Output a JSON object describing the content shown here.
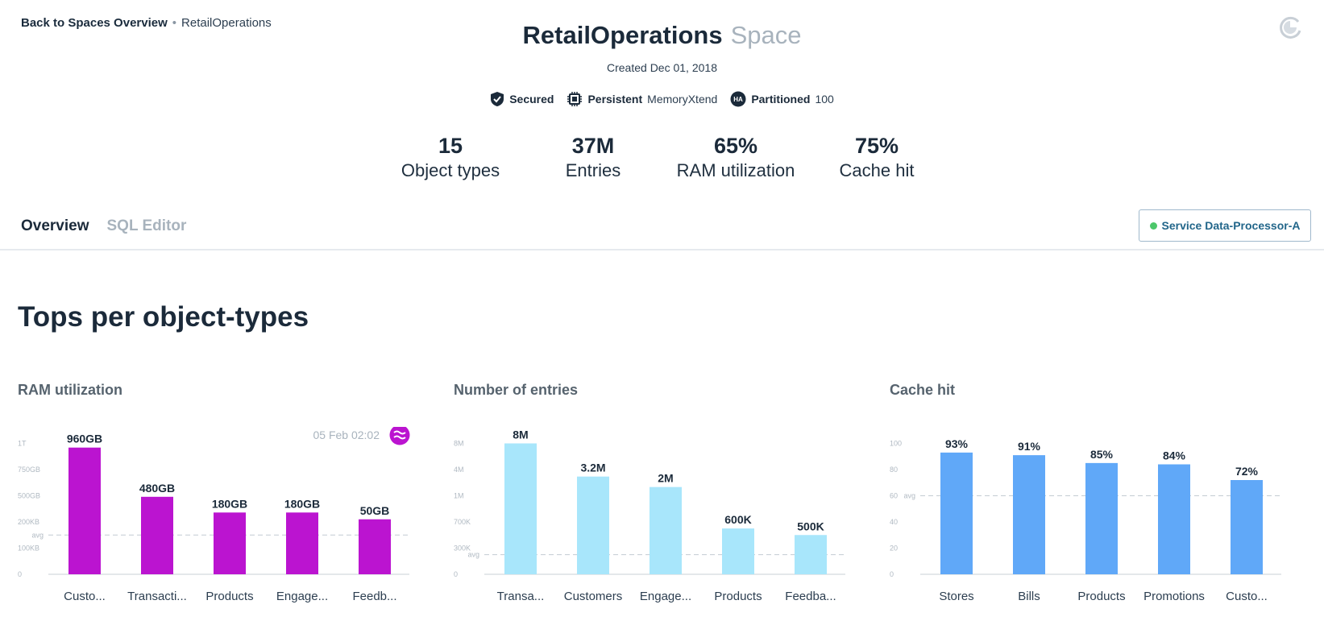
{
  "breadcrumb": {
    "back": "Back to Spaces Overview",
    "separator": "•",
    "current": "RetailOperations"
  },
  "header": {
    "title": "RetailOperations",
    "subtitle": "Space",
    "created": "Created Dec 01, 2018"
  },
  "badges": {
    "secured": "Secured",
    "persistent": "Persistent",
    "persistent_value": "MemoryXtend",
    "ha_icon_text": "HA",
    "partitioned": "Partitioned",
    "partitioned_value": "100"
  },
  "stats": [
    {
      "value": "15",
      "label": "Object types"
    },
    {
      "value": "37M",
      "label": "Entries"
    },
    {
      "value": "65%",
      "label": "RAM utilization"
    },
    {
      "value": "75%",
      "label": "Cache hit"
    }
  ],
  "tabs": {
    "overview": "Overview",
    "sql_editor": "SQL Editor"
  },
  "service": {
    "label": "Service Data-Processor-A",
    "status_color": "#4cc76a"
  },
  "section_title": "Tops per object-types",
  "charts": {
    "ram_title": "RAM utilization",
    "entries_title": "Number of entries",
    "cache_title": "Cache hit"
  },
  "chart_data": [
    {
      "type": "bar",
      "title": "RAM utilization",
      "color": "#bb14d0",
      "timestamp": "05 Feb 02:02",
      "avg_label": "avg",
      "y_ticks": [
        "0",
        "100KB",
        "200KB",
        "500GB",
        "750GB",
        "1T"
      ],
      "categories": [
        "Custo...",
        "Transacti...",
        "Products",
        "Engage...",
        "Feedb..."
      ],
      "value_labels": [
        "960GB",
        "480GB",
        "180GB",
        "180GB",
        "50GB"
      ],
      "values": [
        960,
        480,
        180,
        180,
        50
      ],
      "avg_tick_index": 1.5
    },
    {
      "type": "bar",
      "title": "Number of entries",
      "color": "#a8e6fb",
      "avg_label": "avg",
      "y_ticks": [
        "0",
        "300K",
        "700K",
        "1M",
        "4M",
        "8M"
      ],
      "categories": [
        "Transa...",
        "Customers",
        "Engage...",
        "Products",
        "Feedba..."
      ],
      "value_labels": [
        "8M",
        "3.2M",
        "2M",
        "600K",
        "500K"
      ],
      "values": [
        8000000,
        3200000,
        2000000,
        600000,
        500000
      ],
      "avg_tick_index": 0.75
    },
    {
      "type": "bar",
      "title": "Cache hit",
      "color": "#60a8f8",
      "avg_label": "avg",
      "y_ticks": [
        "0",
        "20",
        "40",
        "60",
        "80",
        "100"
      ],
      "ylim": [
        0,
        100
      ],
      "categories": [
        "Stores",
        "Bills",
        "Products",
        "Promotions",
        "Custo..."
      ],
      "value_labels": [
        "93%",
        "91%",
        "85%",
        "84%",
        "72%"
      ],
      "values": [
        93,
        91,
        85,
        84,
        72
      ],
      "avg": 60
    }
  ]
}
